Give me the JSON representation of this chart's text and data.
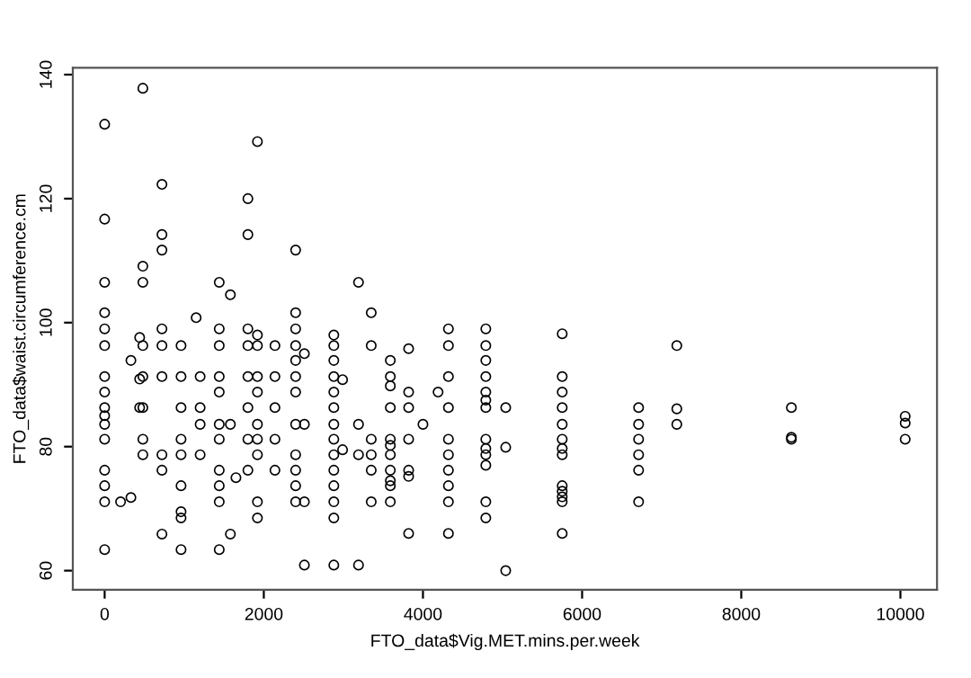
{
  "chart_data": {
    "type": "scatter",
    "xlabel": "FTO_data$Vig.MET.mins.per.week",
    "ylabel": "FTO_data$waist.circumference.cm",
    "xlim": [
      -400,
      10460
    ],
    "ylim": [
      56.9,
      141.1
    ],
    "xticks": [
      0,
      2000,
      4000,
      6000,
      8000,
      10000
    ],
    "yticks": [
      60,
      80,
      100,
      120,
      140
    ],
    "marker": "circle",
    "grid": false,
    "legend": false,
    "series": [
      {
        "color": "#000000",
        "x": [
          0,
          0,
          0,
          0,
          0,
          0,
          0,
          0,
          0,
          0,
          0,
          0,
          0,
          0,
          0,
          0,
          480,
          480,
          480,
          480,
          480,
          480,
          480,
          480,
          720,
          720,
          720,
          720,
          720,
          720,
          720,
          720,
          720,
          960,
          960,
          960,
          960,
          960,
          960,
          960,
          960,
          960,
          1200,
          1200,
          1200,
          1200,
          1440,
          1440,
          1440,
          1440,
          1440,
          1440,
          1440,
          1440,
          1440,
          1440,
          1440,
          1580,
          1580,
          1580,
          1800,
          1800,
          1800,
          1800,
          1800,
          1800,
          1800,
          1800,
          1920,
          1920,
          1920,
          1920,
          1920,
          1920,
          1920,
          1920,
          1920,
          1920,
          2140,
          2140,
          2140,
          2140,
          2140,
          2400,
          2400,
          2400,
          2400,
          2400,
          2400,
          2400,
          2400,
          2400,
          2400,
          2400,
          2400,
          2510,
          2510,
          2510,
          2510,
          2880,
          2880,
          2880,
          2880,
          2880,
          2880,
          2880,
          2880,
          2880,
          2880,
          2880,
          2880,
          2880,
          2880,
          2990,
          2990,
          3190,
          3190,
          3190,
          3190,
          3350,
          3350,
          3350,
          3350,
          3350,
          3350,
          200,
          330,
          330,
          440,
          440,
          440,
          1150,
          1650,
          3590,
          3590,
          3590,
          3590,
          3590,
          3590,
          3590,
          3590,
          3590,
          3590,
          3590,
          3820,
          3820,
          3820,
          3820,
          3820,
          3820,
          3820,
          4000,
          4190,
          4320,
          4320,
          4320,
          4320,
          4320,
          4320,
          4320,
          4320,
          4320,
          4320,
          4790,
          4790,
          4790,
          4790,
          4790,
          4790,
          4790,
          4790,
          4790,
          4790,
          4790,
          4790,
          4790,
          5040,
          5040,
          5040,
          5750,
          5750,
          5750,
          5750,
          5750,
          5750,
          5750,
          5750,
          5750,
          5750,
          5750,
          5750,
          5750,
          6710,
          6710,
          6710,
          6710,
          6710,
          6710,
          7190,
          7190,
          7190,
          8630,
          8630,
          8630,
          10060,
          10060,
          10060
        ],
        "values": [
          132,
          116.7,
          106.5,
          101.6,
          99,
          96.3,
          91.3,
          88.8,
          86.3,
          85,
          83.6,
          81.2,
          76.2,
          73.7,
          71.1,
          63.4,
          137.8,
          109.1,
          106.5,
          96.3,
          91.3,
          86.3,
          81.2,
          78.7,
          122.3,
          114.2,
          111.7,
          99,
          96.3,
          91.3,
          78.7,
          76.2,
          65.9,
          96.3,
          91.3,
          86.3,
          81.2,
          78.7,
          73.7,
          69.5,
          68.5,
          63.4,
          86.3,
          83.6,
          78.7,
          91.3,
          106.5,
          99,
          96.3,
          91.3,
          88.8,
          83.6,
          81.2,
          76.2,
          73.7,
          71.1,
          63.4,
          104.5,
          83.6,
          65.9,
          120,
          114.2,
          99,
          96.3,
          91.3,
          86.3,
          81.2,
          76.2,
          129.2,
          98,
          96.3,
          91.3,
          88.8,
          83.6,
          81.2,
          78.7,
          71.1,
          68.5,
          96.3,
          91.3,
          86.3,
          81.2,
          76.2,
          111.7,
          101.6,
          99,
          96.3,
          93.9,
          91.3,
          88.8,
          83.6,
          78.7,
          76.2,
          73.7,
          71.1,
          95,
          83.6,
          71.1,
          60.9,
          98,
          96.3,
          93.9,
          91.3,
          88.8,
          86.3,
          83.6,
          81.2,
          78.7,
          76.2,
          73.7,
          71.1,
          68.5,
          60.9,
          90.8,
          79.5,
          106.5,
          83.6,
          78.7,
          60.9,
          101.6,
          96.3,
          81.2,
          78.7,
          76.2,
          71.1,
          71.1,
          93.9,
          71.8,
          97.6,
          90.9,
          86.3,
          100.8,
          75,
          93.9,
          91.3,
          89.8,
          86.3,
          81.2,
          80.2,
          78.7,
          76.2,
          74.5,
          73.7,
          71.1,
          95.8,
          88.8,
          86.3,
          81.2,
          76.2,
          75.2,
          66,
          83.6,
          88.8,
          99,
          96.3,
          91.3,
          86.3,
          81.2,
          78.7,
          76.2,
          73.7,
          71.1,
          66,
          99,
          96.3,
          93.9,
          91.3,
          88.8,
          87.5,
          86.3,
          81.2,
          79.7,
          78.7,
          77,
          71.1,
          68.5,
          86.3,
          79.9,
          60,
          98.2,
          91.3,
          88.8,
          86.3,
          83.6,
          81.2,
          79.7,
          78.7,
          73.7,
          72.8,
          71.9,
          71.1,
          66,
          86.3,
          83.6,
          81.2,
          78.7,
          76.2,
          71.1,
          96.3,
          86.1,
          83.6,
          86.3,
          81.5,
          81.2,
          84.9,
          83.8,
          81.2
        ]
      }
    ]
  }
}
